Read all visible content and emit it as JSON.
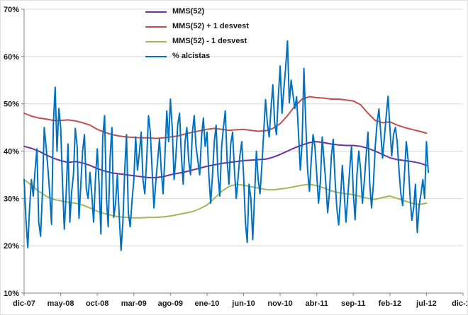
{
  "chart_data": {
    "type": "line",
    "title": "",
    "grid": "horizontal",
    "legend_position": "top-inside",
    "style": {
      "grid_color": "#d9d9d9",
      "axis_color": "#808080",
      "tick_text_color": "#1a1a1a",
      "background": "#ffffff"
    },
    "x_axis": {
      "min": 0,
      "max": 60,
      "tick_interval": 5,
      "tick_labels": [
        "dic-07",
        "may-08",
        "oct-08",
        "mar-09",
        "ago-09",
        "ene-10",
        "jun-10",
        "nov-10",
        "abr-11",
        "sep-11",
        "feb-12",
        "jul-12",
        "dic-12"
      ]
    },
    "y_axis": {
      "min": 10,
      "max": 70,
      "tick_interval": 10,
      "tick_labels": [
        "10%",
        "20%",
        "30%",
        "40%",
        "50%",
        "60%",
        "70%"
      ]
    },
    "series": [
      {
        "name": "MMS(52)",
        "color": "#7030A0",
        "width": 2,
        "x_start": 0,
        "x_step": 1,
        "values": [
          41.0,
          40.6,
          40.0,
          39.2,
          38.5,
          38.0,
          37.6,
          37.8,
          37.5,
          37.0,
          36.3,
          35.8,
          35.4,
          35.2,
          35.0,
          34.8,
          34.6,
          34.4,
          34.4,
          34.6,
          35.0,
          35.3,
          35.6,
          36.0,
          36.4,
          36.8,
          37.1,
          37.4,
          37.6,
          37.8,
          38.0,
          38.1,
          38.2,
          38.3,
          38.7,
          39.3,
          40.0,
          40.7,
          41.3,
          41.8,
          42.0,
          41.8,
          41.5,
          41.3,
          41.2,
          41.2,
          41.0,
          40.6,
          40.0,
          39.3,
          38.6,
          38.2,
          38.0,
          37.8,
          37.5,
          37.0
        ]
      },
      {
        "name": "MMS(52) + 1 desvest",
        "color": "#C0504D",
        "width": 2,
        "x_start": 0,
        "x_step": 1,
        "values": [
          48.0,
          47.4,
          47.0,
          46.8,
          46.5,
          46.5,
          46.6,
          46.4,
          46.0,
          45.5,
          44.6,
          44.0,
          43.5,
          43.2,
          43.0,
          42.9,
          42.8,
          42.8,
          42.7,
          42.8,
          43.0,
          43.2,
          43.6,
          44.0,
          44.3,
          44.6,
          44.8,
          44.6,
          44.4,
          44.5,
          44.6,
          44.4,
          44.2,
          44.3,
          44.8,
          45.8,
          47.5,
          49.5,
          51.0,
          51.5,
          51.3,
          51.2,
          51.0,
          51.0,
          50.8,
          50.6,
          49.8,
          48.0,
          46.5,
          46.0,
          46.2,
          45.5,
          45.0,
          44.6,
          44.2,
          43.8
        ]
      },
      {
        "name": "MMS(52) - 1 desvest",
        "color": "#9BBB59",
        "width": 2,
        "x_start": 0,
        "x_step": 1,
        "values": [
          34.0,
          32.8,
          31.5,
          30.5,
          29.8,
          29.5,
          29.2,
          29.0,
          28.6,
          28.0,
          27.3,
          26.8,
          26.4,
          26.1,
          26.0,
          25.9,
          25.9,
          26.0,
          26.0,
          26.1,
          26.3,
          26.6,
          26.9,
          27.2,
          27.8,
          28.6,
          30.0,
          31.5,
          32.5,
          33.0,
          32.8,
          32.5,
          32.2,
          31.9,
          31.8,
          32.0,
          32.2,
          32.5,
          32.8,
          33.0,
          32.7,
          32.2,
          31.6,
          31.2,
          31.0,
          30.8,
          30.4,
          30.0,
          29.8,
          30.2,
          30.5,
          30.0,
          29.5,
          29.0,
          28.7,
          29.0
        ]
      },
      {
        "name": "% alcistas",
        "color": "#0070C0",
        "width": 2,
        "x_start": 0,
        "x_step": 0.25,
        "values": [
          34,
          25.5,
          19.6,
          28,
          34,
          30.5,
          36,
          40.5,
          25,
          22,
          31,
          45,
          41,
          36.5,
          31,
          24.5,
          46,
          53.5,
          40,
          49,
          45,
          33,
          23.5,
          31,
          41.5,
          25,
          31.5,
          35,
          44.8,
          41,
          25.8,
          33,
          40,
          43.5,
          32,
          30,
          35.5,
          31,
          25,
          34,
          40.5,
          33,
          22.5,
          43,
          47.5,
          30,
          24,
          38.5,
          45,
          26,
          29,
          35,
          26.5,
          19,
          25,
          36,
          43.5,
          27,
          24,
          29.5,
          34,
          43,
          36,
          39.5,
          44,
          34,
          31,
          38,
          47.5,
          44,
          36,
          28,
          33.5,
          38,
          42.5,
          36,
          31,
          39,
          48.5,
          42,
          51,
          45,
          34,
          39,
          45.5,
          48,
          39,
          33,
          42,
          45,
          38,
          35,
          44,
          47.5,
          41,
          38,
          35,
          43,
          47,
          41,
          44,
          35,
          29,
          35,
          42,
          45.5,
          35,
          30.5,
          41,
          45,
          48.5,
          38,
          33,
          41.5,
          44,
          36,
          30,
          34.5,
          39,
          42,
          35,
          25,
          20.7,
          33,
          30,
          21.3,
          30.5,
          40,
          34,
          31,
          37,
          44,
          50.9,
          46,
          43,
          49,
          54,
          46,
          43.5,
          51.5,
          58,
          48,
          53,
          57.5,
          63.3,
          50.2,
          55,
          52,
          49,
          51.5,
          44,
          36,
          41.5,
          57.5,
          46,
          36,
          31.5,
          38,
          43.5,
          41,
          35,
          29,
          33.5,
          43,
          38,
          33,
          27,
          31.5,
          39,
          42.5,
          34,
          28,
          24.4,
          30,
          37,
          31,
          25,
          30.5,
          36,
          41,
          31,
          25.5,
          35,
          40,
          36,
          29,
          33.5,
          39,
          44,
          33,
          28,
          33,
          41,
          46,
          48.9,
          44,
          38.5,
          43,
          47.5,
          51.6,
          45,
          39,
          43.5,
          45,
          42,
          36,
          31,
          28.5,
          35.5,
          42,
          38,
          30.5,
          25.4,
          28,
          33,
          22.8,
          28.5,
          31,
          34,
          30,
          42,
          35.5
        ]
      }
    ]
  }
}
